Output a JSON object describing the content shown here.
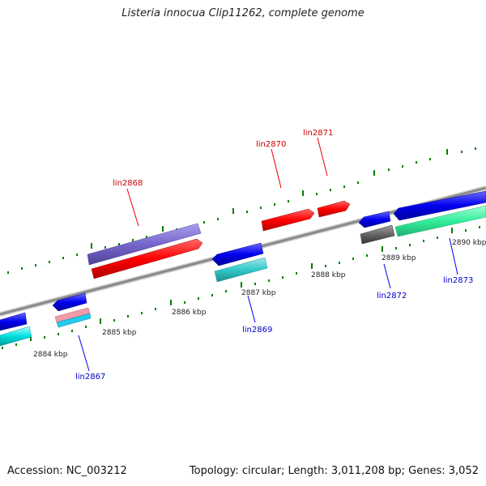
{
  "header": {
    "title": "Listeria innocua Clip11262, complete genome"
  },
  "footer": {
    "accession": "Accession: NC_003212",
    "summary": "Topology: circular; Length: 3,011,208 bp; Genes: 3,052"
  },
  "scale": {
    "ticks": [
      "2884 kbp",
      "2885 kbp",
      "2886 kbp",
      "2887 kbp",
      "2888 kbp",
      "2889 kbp",
      "2890 kbp"
    ]
  },
  "genes": {
    "lin2867": "lin2867",
    "lin2868": "lin2868",
    "lin2869": "lin2869",
    "lin2870": "lin2870",
    "lin2871": "lin2871",
    "lin2872": "lin2872",
    "lin2873": "lin2873"
  },
  "colors": {
    "forward_cds": "#ff0000",
    "reverse_cds": "#0000ee",
    "forward_label": "#cc0000",
    "reverse_label": "#0000cc",
    "backbone": "#888888",
    "tick": "#008000"
  }
}
